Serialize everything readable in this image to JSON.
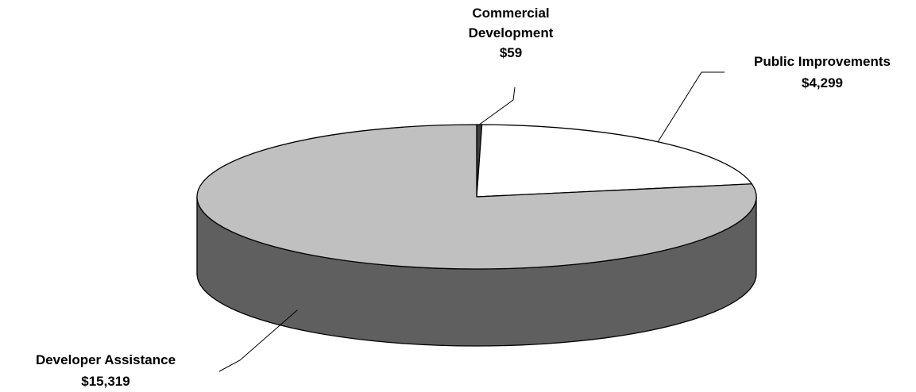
{
  "chart_data": {
    "type": "pie",
    "style": "3d",
    "slices": [
      {
        "label_lines": [
          "Commercial",
          "Development"
        ],
        "value_label": "$59",
        "value": 59,
        "color": "#404040"
      },
      {
        "label_lines": [
          "Public Improvements"
        ],
        "value_label": "$4,299",
        "value": 4299,
        "color": "#ffffff"
      },
      {
        "label_lines": [
          "Developer Assistance"
        ],
        "value_label": "$15,319",
        "value": 15319,
        "color": "#c0c0c0"
      }
    ],
    "side_color": "#5f5f5f",
    "outline_color": "#000000"
  }
}
